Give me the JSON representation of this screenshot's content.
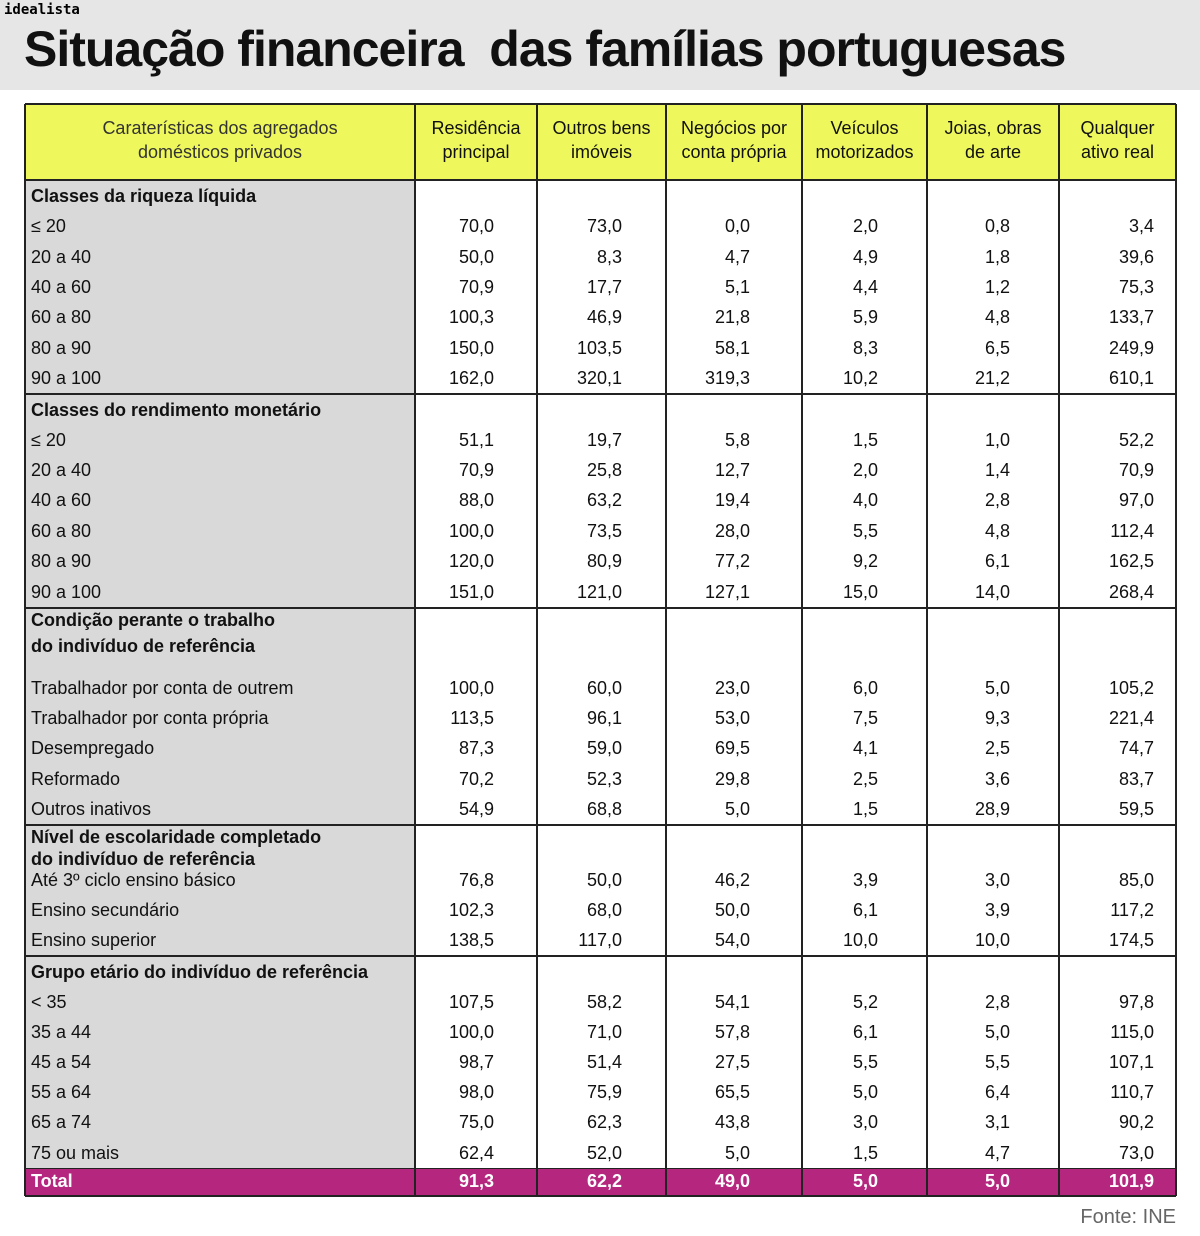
{
  "brand": "idealista",
  "title": "Situação financeira  das famílias portuguesas",
  "table": {
    "header": [
      [
        "Caraterísticas dos agregados",
        "domésticos privados"
      ],
      [
        "Residência",
        "principal"
      ],
      [
        "Outros bens",
        "imóveis"
      ],
      [
        "Negócios por",
        "conta própria"
      ],
      [
        "Veículos",
        "motorizados"
      ],
      [
        "Joias, obras",
        "de arte"
      ],
      [
        "Qualquer",
        "ativo real"
      ]
    ],
    "sections": [
      {
        "title": [
          "Classes da riqueza líquida"
        ],
        "rows": [
          [
            "≤ 20",
            "70,0",
            "73,0",
            "0,0",
            "2,0",
            "0,8",
            "3,4"
          ],
          [
            "20 a 40",
            "50,0",
            "8,3",
            "4,7",
            "4,9",
            "1,8",
            "39,6"
          ],
          [
            "40 a 60",
            "70,9",
            "17,7",
            "5,1",
            "4,4",
            "1,2",
            "75,3"
          ],
          [
            "60 a 80",
            "100,3",
            "46,9",
            "21,8",
            "5,9",
            "4,8",
            "133,7"
          ],
          [
            "80 a 90",
            "150,0",
            "103,5",
            "58,1",
            "8,3",
            "6,5",
            "249,9"
          ],
          [
            "90 a 100",
            "162,0",
            "320,1",
            "319,3",
            "10,2",
            "21,2",
            "610,1"
          ]
        ]
      },
      {
        "title": [
          "Classes do rendimento monetário"
        ],
        "rows": [
          [
            "≤ 20",
            "51,1",
            "19,7",
            "5,8",
            "1,5",
            "1,0",
            "52,2"
          ],
          [
            "20 a 40",
            "70,9",
            "25,8",
            "12,7",
            "2,0",
            "1,4",
            "70,9"
          ],
          [
            "40 a 60",
            "88,0",
            "63,2",
            "19,4",
            "4,0",
            "2,8",
            "97,0"
          ],
          [
            "60 a 80",
            "100,0",
            "73,5",
            "28,0",
            "5,5",
            "4,8",
            "112,4"
          ],
          [
            "80 a 90",
            "120,0",
            "80,9",
            "77,2",
            "9,2",
            "6,1",
            "162,5"
          ],
          [
            "90 a 100",
            "151,0",
            "121,0",
            "127,1",
            "15,0",
            "14,0",
            "268,4"
          ]
        ]
      },
      {
        "title": [
          "Condição perante o trabalho",
          "do indivíduo de referência"
        ],
        "rows": [
          [
            "Trabalhador por conta de outrem",
            "100,0",
            "60,0",
            "23,0",
            "6,0",
            "5,0",
            "105,2"
          ],
          [
            "Trabalhador por conta própria",
            "113,5",
            "96,1",
            "53,0",
            "7,5",
            "9,3",
            "221,4"
          ],
          [
            "Desempregado",
            "87,3",
            "59,0",
            "69,5",
            "4,1",
            "2,5",
            "74,7"
          ],
          [
            "Reformado",
            "70,2",
            "52,3",
            "29,8",
            "2,5",
            "3,6",
            "83,7"
          ],
          [
            "Outros inativos",
            "54,9",
            "68,8",
            "5,0",
            "1,5",
            "28,9",
            "59,5"
          ]
        ]
      },
      {
        "title": [
          "Nível de escolaridade completado",
          "do indivíduo de referência"
        ],
        "rows": [
          [
            "Até 3º ciclo ensino básico",
            "76,8",
            "50,0",
            "46,2",
            "3,9",
            "3,0",
            "85,0"
          ],
          [
            "Ensino secundário",
            "102,3",
            "68,0",
            "50,0",
            "6,1",
            "3,9",
            "117,2"
          ],
          [
            "Ensino superior",
            "138,5",
            "117,0",
            "54,0",
            "10,0",
            "10,0",
            "174,5"
          ]
        ]
      },
      {
        "title": [
          "Grupo etário do indivíduo de referência"
        ],
        "rows": [
          [
            "< 35",
            "107,5",
            "58,2",
            "54,1",
            "5,2",
            "2,8",
            "97,8"
          ],
          [
            "35 a 44",
            "100,0",
            "71,0",
            "57,8",
            "6,1",
            "5,0",
            "115,0"
          ],
          [
            "45 a 54",
            "98,7",
            "51,4",
            "27,5",
            "5,5",
            "5,5",
            "107,1"
          ],
          [
            "55 a 64",
            "98,0",
            "75,9",
            "65,5",
            "5,0",
            "6,4",
            "110,7"
          ],
          [
            "65 a 74",
            "75,0",
            "62,3",
            "43,8",
            "3,0",
            "3,1",
            "90,2"
          ],
          [
            "75 ou mais",
            "62,4",
            "52,0",
            "5,0",
            "1,5",
            "4,7",
            "73,0"
          ]
        ]
      }
    ],
    "total": [
      "Total",
      "91,3",
      "62,2",
      "49,0",
      "5,0",
      "5,0",
      "101,9"
    ]
  },
  "source": "Fonte: INE"
}
